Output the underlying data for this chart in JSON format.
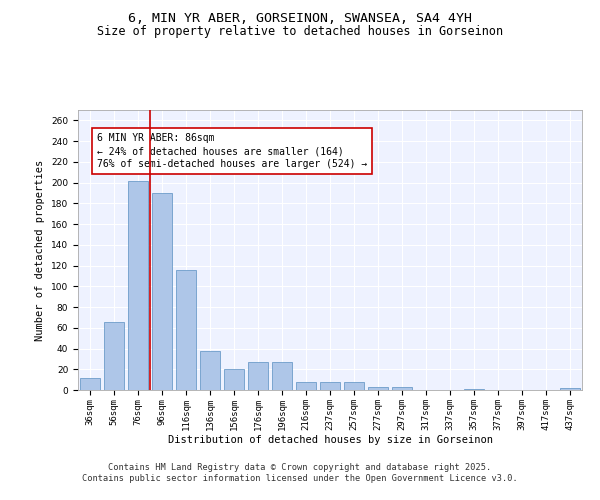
{
  "title_line1": "6, MIN YR ABER, GORSEINON, SWANSEA, SA4 4YH",
  "title_line2": "Size of property relative to detached houses in Gorseinon",
  "xlabel": "Distribution of detached houses by size in Gorseinon",
  "ylabel": "Number of detached properties",
  "categories": [
    "36sqm",
    "56sqm",
    "76sqm",
    "96sqm",
    "116sqm",
    "136sqm",
    "156sqm",
    "176sqm",
    "196sqm",
    "216sqm",
    "237sqm",
    "257sqm",
    "277sqm",
    "297sqm",
    "317sqm",
    "337sqm",
    "357sqm",
    "377sqm",
    "397sqm",
    "417sqm",
    "437sqm"
  ],
  "values": [
    12,
    66,
    202,
    190,
    116,
    38,
    20,
    27,
    27,
    8,
    8,
    8,
    3,
    3,
    0,
    0,
    1,
    0,
    0,
    0,
    2
  ],
  "bar_color": "#aec6e8",
  "bar_edge_color": "#5a8fc2",
  "vline_x": 2.5,
  "vline_color": "#cc0000",
  "annotation_text": "6 MIN YR ABER: 86sqm\n← 24% of detached houses are smaller (164)\n76% of semi-detached houses are larger (524) →",
  "annotation_box_color": "#ffffff",
  "annotation_box_edge": "#cc0000",
  "ylim": [
    0,
    270
  ],
  "yticks": [
    0,
    20,
    40,
    60,
    80,
    100,
    120,
    140,
    160,
    180,
    200,
    220,
    240,
    260
  ],
  "background_color": "#eef2ff",
  "grid_color": "#ffffff",
  "footer_line1": "Contains HM Land Registry data © Crown copyright and database right 2025.",
  "footer_line2": "Contains public sector information licensed under the Open Government Licence v3.0.",
  "title_fontsize": 9.5,
  "subtitle_fontsize": 8.5,
  "axis_label_fontsize": 7.5,
  "tick_fontsize": 6.5,
  "annotation_fontsize": 7,
  "footer_fontsize": 6.2
}
